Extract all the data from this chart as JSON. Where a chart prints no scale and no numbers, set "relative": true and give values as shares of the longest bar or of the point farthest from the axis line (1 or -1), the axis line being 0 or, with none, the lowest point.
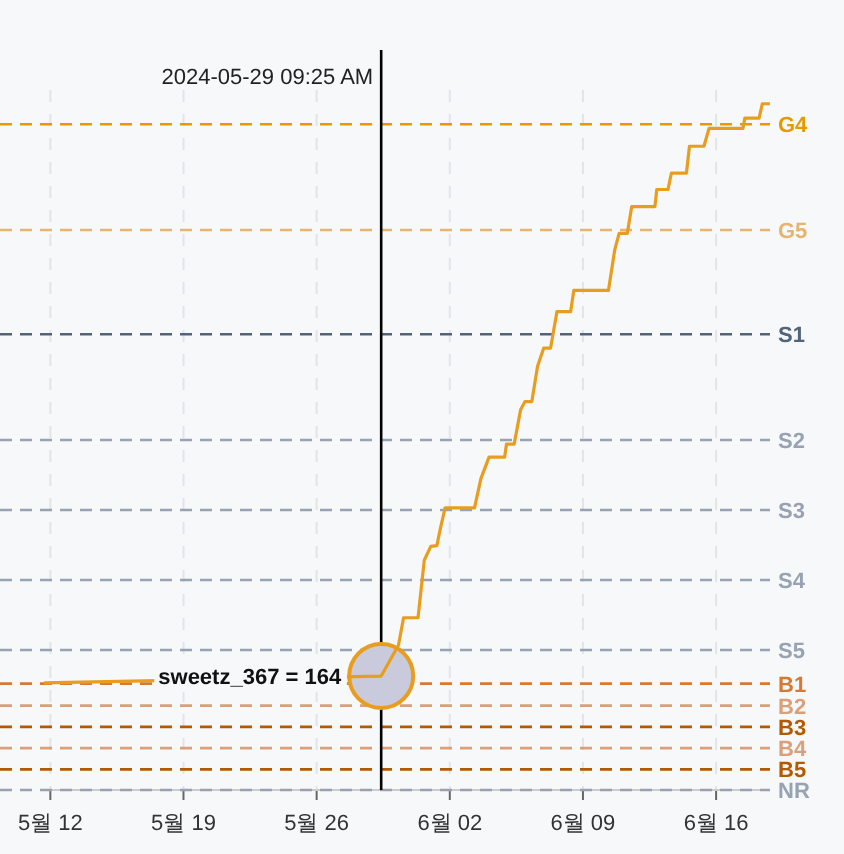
{
  "chart_data": {
    "type": "line",
    "relative": true,
    "line_style": "solid",
    "grid": "x",
    "xlim": [
      "2024-05-11T16:00",
      "2024-06-18T20:00"
    ],
    "xticks": [
      {
        "value": "2024-05-12",
        "label": "5월 12"
      },
      {
        "value": "2024-05-19",
        "label": "5월 19"
      },
      {
        "value": "2024-05-26",
        "label": "5월 26"
      },
      {
        "value": "2024-06-02",
        "label": "6월 02"
      },
      {
        "value": "2024-06-09",
        "label": "6월 09"
      },
      {
        "value": "2024-06-16",
        "label": "6월 16"
      }
    ],
    "series": [
      {
        "color": "#e89d1e",
        "x": [
          "2024-05-11T16:00",
          "2024-05-29T09:25",
          "2024-05-30T07:12",
          "2024-05-30T13:41",
          "2024-05-31T07:55",
          "2024-05-31T15:50",
          "2024-06-01T00:00",
          "2024-06-01T07:40",
          "2024-06-01T11:45",
          "2024-06-01T18:00",
          "2024-06-03T07:10",
          "2024-06-03T15:20",
          "2024-06-04T01:30",
          "2024-06-04T21:10",
          "2024-06-04T23:30",
          "2024-06-05T09:10",
          "2024-06-05T17:20",
          "2024-06-05T22:50",
          "2024-06-06T07:30",
          "2024-06-06T14:40",
          "2024-06-06T22:30",
          "2024-06-07T07:10",
          "2024-06-07T15:10",
          "2024-06-08T08:25",
          "2024-06-08T12:30",
          "2024-06-10T08:10",
          "2024-06-10T16:05",
          "2024-06-10T21:40",
          "2024-06-11T07:55",
          "2024-06-11T13:30",
          "2024-06-12T18:45",
          "2024-06-12T21:10",
          "2024-06-13T11:20",
          "2024-06-13T15:35",
          "2024-06-14T10:35",
          "2024-06-14T14:25",
          "2024-06-15T08:40",
          "2024-06-15T15:05",
          "2024-06-17T09:50",
          "2024-06-17T12:15",
          "2024-06-18T06:15",
          "2024-06-18T10:20",
          "2024-06-18T19:50"
        ],
        "values": [
          0.156,
          0.166,
          0.211,
          0.251,
          0.251,
          0.335,
          0.355,
          0.356,
          0.379,
          0.411,
          0.411,
          0.454,
          0.485,
          0.485,
          0.504,
          0.504,
          0.554,
          0.566,
          0.566,
          0.617,
          0.644,
          0.644,
          0.697,
          0.697,
          0.728,
          0.728,
          0.787,
          0.811,
          0.811,
          0.85,
          0.85,
          0.875,
          0.875,
          0.899,
          0.899,
          0.938,
          0.938,
          0.964,
          0.964,
          0.979,
          0.979,
          1.0,
          1.0
        ]
      }
    ],
    "ref_lines": [
      {
        "axis": "y",
        "value": 0.97,
        "label": "G4",
        "color": "#e69a00",
        "line_style": "dashed"
      },
      {
        "axis": "y",
        "value": 0.816,
        "label": "G5",
        "color": "#e6b46e",
        "line_style": "dashed"
      },
      {
        "axis": "y",
        "value": 0.664,
        "label": "S1",
        "color": "#52637a",
        "line_style": "dashed"
      },
      {
        "axis": "y",
        "value": 0.51,
        "label": "S2",
        "color": "#97a2b2",
        "line_style": "dashed"
      },
      {
        "axis": "y",
        "value": 0.408,
        "label": "S3",
        "color": "#97a2b2",
        "line_style": "dashed"
      },
      {
        "axis": "y",
        "value": 0.306,
        "label": "S4",
        "color": "#97a2b2",
        "line_style": "dashed"
      },
      {
        "axis": "y",
        "value": 0.204,
        "label": "S5",
        "color": "#97a2b2",
        "line_style": "dashed"
      },
      {
        "axis": "y",
        "value": 0.155,
        "label": "B1",
        "color": "#d47a35",
        "line_style": "dashed"
      },
      {
        "axis": "y",
        "value": 0.123,
        "label": "B2",
        "color": "#d9a07a",
        "line_style": "dashed"
      },
      {
        "axis": "y",
        "value": 0.092,
        "label": "B3",
        "color": "#b35900",
        "line_style": "dashed"
      },
      {
        "axis": "y",
        "value": 0.061,
        "label": "B4",
        "color": "#d9a07a",
        "line_style": "dashed"
      },
      {
        "axis": "y",
        "value": 0.03,
        "label": "B5",
        "color": "#b35900",
        "line_style": "dashed"
      },
      {
        "axis": "y",
        "value": 0,
        "label": "NR",
        "color": "#97a2b2",
        "line_style": "dashed"
      },
      {
        "axis": "x",
        "value": "2024-05-29T09:25",
        "label": "2024-05-29 09:25 AM",
        "color": "#000000",
        "line_style": "solid"
      }
    ],
    "annotations": [
      {
        "text": "sweetz_367 = 164",
        "x": "2024-05-29T09:25",
        "y": 0.166
      }
    ]
  }
}
